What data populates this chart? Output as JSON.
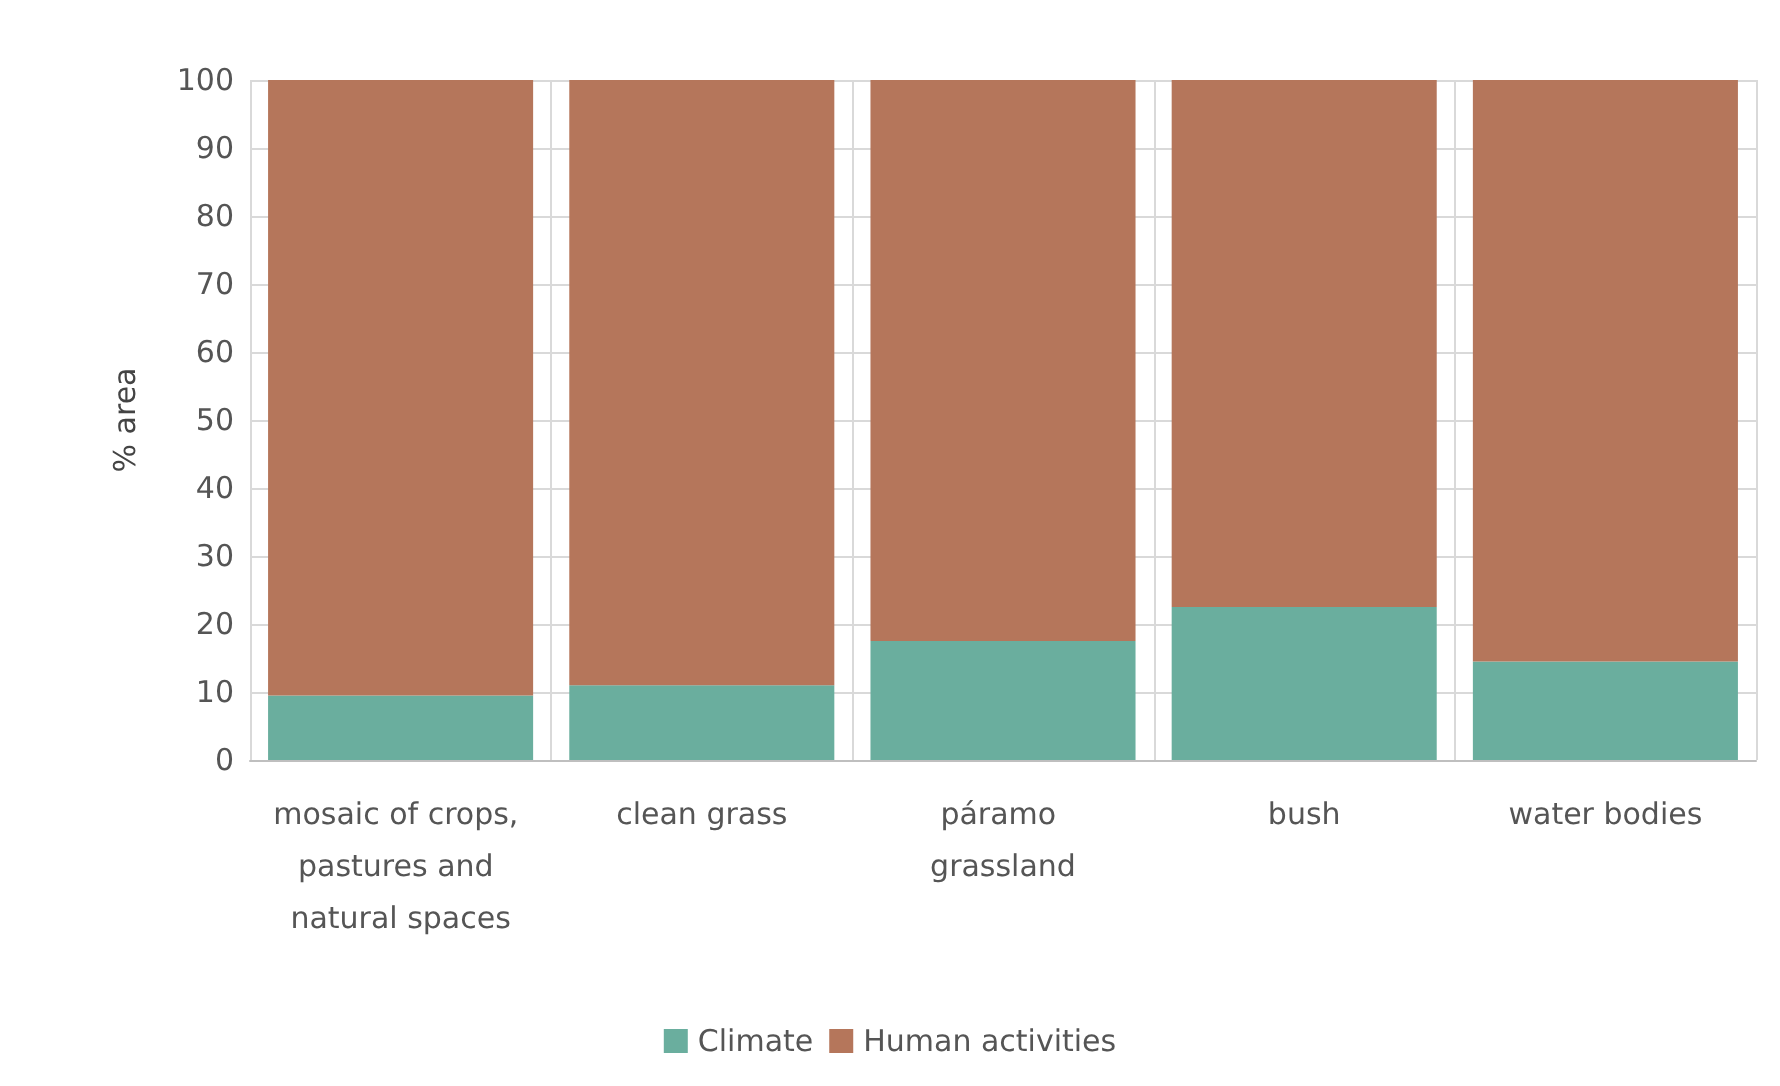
{
  "chart_data": {
    "type": "bar",
    "stacked": true,
    "ylabel": "% area",
    "categories": [
      "mosaic of crops, pastures and natural spaces",
      "clean grass",
      "páramo grassland",
      "bush",
      "water bodies"
    ],
    "series": [
      {
        "name": "Climate",
        "color": "#6aae9e",
        "values": [
          9.5,
          11,
          17.5,
          22.5,
          14.5
        ]
      },
      {
        "name": "Human activities",
        "color": "#b5765b",
        "values": [
          90.5,
          89,
          82.5,
          77.5,
          85.5
        ]
      }
    ],
    "ylim": [
      0,
      100
    ],
    "yticks": [
      0,
      10,
      20,
      30,
      40,
      50,
      60,
      70,
      80,
      90,
      100
    ],
    "grid": true,
    "legend": "bottom"
  }
}
